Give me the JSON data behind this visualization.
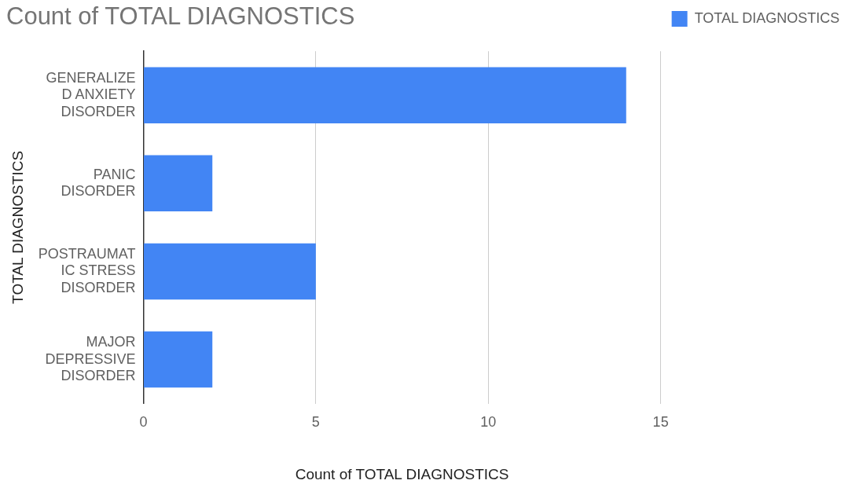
{
  "chart_data": {
    "type": "bar",
    "orientation": "horizontal",
    "title": "Count of TOTAL DIAGNOSTICS",
    "xlabel": "Count of TOTAL DIAGNOSTICS",
    "ylabel": "TOTAL DIAGNOSTICS",
    "categories": [
      "GENERALIZED ANXIETY DISORDER",
      "PANIC DISORDER",
      "POSTRAUMATIC STRESS DISORDER",
      "MAJOR DEPRESSIVE DISORDER"
    ],
    "series": [
      {
        "name": "TOTAL DIAGNOSTICS",
        "color": "#4285f4",
        "values": [
          14,
          2,
          5,
          2
        ]
      }
    ],
    "xlim": [
      0,
      15
    ],
    "xticks": [
      0,
      5,
      10,
      15
    ],
    "grid": "x",
    "legend": "top right"
  }
}
